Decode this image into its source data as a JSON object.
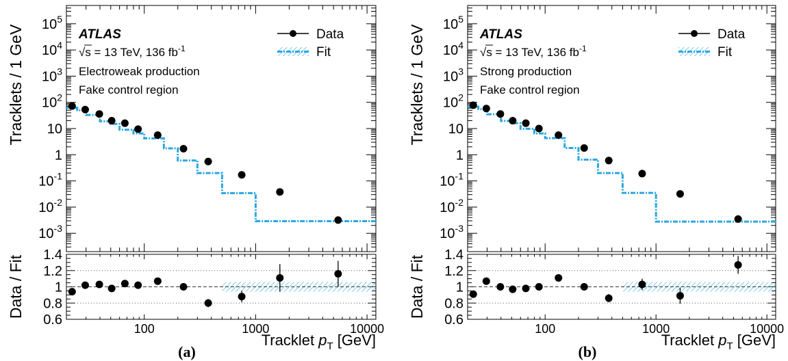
{
  "colors": {
    "data": "#000000",
    "fit": "#29a7e1",
    "fit_band": "#29a7e1",
    "reference": "#333333",
    "grid": "#555555"
  },
  "chart_data": [
    {
      "panel_label": "(a)",
      "type": "line",
      "x_scale": "log",
      "y_scale": "log",
      "ratio_y_scale": "linear",
      "xlabel_prefix": "Tracklet ",
      "xlabel_var": "p",
      "xlabel_sub": "T",
      "xlabel_unit": " [GeV]",
      "ylabel": "Tracklets / 1 GeV",
      "ratio_ylabel": "Data / Fit",
      "xlim": [
        20,
        12000
      ],
      "ylim": [
        0.0002,
        500000
      ],
      "ratio_ylim": [
        0.6,
        1.4
      ],
      "x_ticks": [
        "100",
        "1000",
        "10000"
      ],
      "y_ticks": [
        {
          "mant": "10",
          "exp": "-3"
        },
        {
          "mant": "10",
          "exp": "-2"
        },
        {
          "mant": "10",
          "exp": "-1"
        },
        {
          "mant": "1",
          "exp": ""
        },
        {
          "mant": "10",
          "exp": ""
        },
        {
          "mant": "10",
          "exp": "2"
        },
        {
          "mant": "10",
          "exp": "3"
        },
        {
          "mant": "10",
          "exp": "4"
        },
        {
          "mant": "10",
          "exp": "5"
        }
      ],
      "ratio_ticks": [
        "0.6",
        "0.8",
        "1",
        "1.2",
        "1.4"
      ],
      "legend": [
        {
          "label": "Data"
        },
        {
          "label": "Fit"
        }
      ],
      "experiment": "ATLAS",
      "lumi_prefix": "√s = 13 TeV, 136 fb",
      "lumi_exp": "-1",
      "annotation_lines": [
        "Electroweak production",
        "Fake control region"
      ],
      "fit": {
        "edges": [
          20,
          25,
          30,
          40,
          50,
          60,
          80,
          100,
          150,
          200,
          300,
          500,
          1000,
          2500,
          12000
        ],
        "values": [
          62,
          50,
          33,
          19,
          15,
          9,
          6.5,
          4.2,
          1.75,
          0.6,
          0.2,
          0.034,
          0.0029,
          0.0029
        ]
      },
      "data": {
        "x": [
          22.5,
          27.5,
          35,
          45,
          55,
          70,
          90,
          125,
          175,
          250,
          400,
          750,
          1750,
          5500
        ],
        "y": [
          72,
          53,
          36,
          20,
          16,
          9.5,
          5.6,
          1.7,
          0.55,
          0.17,
          0.038,
          0.0032,
          null,
          null
        ]
      },
      "data_points": [
        [
          22.5,
          72
        ],
        [
          29.5,
          53
        ],
        [
          39.5,
          36
        ],
        [
          51,
          20
        ],
        [
          67,
          16
        ],
        [
          88,
          9.5
        ],
        [
          132,
          5.6
        ],
        [
          225,
          1.7
        ],
        [
          375,
          0.55
        ],
        [
          750,
          0.17
        ],
        [
          1650,
          0.038
        ],
        [
          5500,
          0.0032
        ]
      ],
      "ratio_points": [
        [
          22.5,
          0.94,
          0.03
        ],
        [
          29.5,
          1.02,
          0.03
        ],
        [
          39.5,
          1.03,
          0.035
        ],
        [
          51,
          0.98,
          0.035
        ],
        [
          67,
          1.04,
          0.04
        ],
        [
          88,
          1.02,
          0.04
        ],
        [
          132,
          1.07,
          0.04
        ],
        [
          225,
          1.0,
          0.045
        ],
        [
          375,
          0.8,
          0.05
        ],
        [
          750,
          0.88,
          0.07
        ],
        [
          1650,
          1.11,
          0.17
        ],
        [
          5500,
          1.16,
          0.16
        ]
      ],
      "fit_band_from": 500,
      "fit_band_halfwidth": 0.06
    },
    {
      "panel_label": "(b)",
      "type": "line",
      "x_scale": "log",
      "y_scale": "log",
      "ratio_y_scale": "linear",
      "xlabel_prefix": "Tracklet ",
      "xlabel_var": "p",
      "xlabel_sub": "T",
      "xlabel_unit": " [GeV]",
      "ylabel": "Tracklets / 1 GeV",
      "ratio_ylabel": "Data / Fit",
      "xlim": [
        20,
        12000
      ],
      "ylim": [
        0.0002,
        500000
      ],
      "ratio_ylim": [
        0.6,
        1.4
      ],
      "x_ticks": [
        "100",
        "1000",
        "10000"
      ],
      "y_ticks": [
        {
          "mant": "10",
          "exp": "-3"
        },
        {
          "mant": "10",
          "exp": "-2"
        },
        {
          "mant": "10",
          "exp": "-1"
        },
        {
          "mant": "1",
          "exp": ""
        },
        {
          "mant": "10",
          "exp": ""
        },
        {
          "mant": "10",
          "exp": "2"
        },
        {
          "mant": "10",
          "exp": "3"
        },
        {
          "mant": "10",
          "exp": "4"
        },
        {
          "mant": "10",
          "exp": "5"
        }
      ],
      "ratio_ticks": [
        "0.6",
        "0.8",
        "1",
        "1.2",
        "1.4"
      ],
      "legend": [
        {
          "label": "Data"
        },
        {
          "label": "Fit"
        }
      ],
      "experiment": "ATLAS",
      "lumi_prefix": "√s = 13 TeV, 136 fb",
      "lumi_exp": "-1",
      "annotation_lines": [
        "Strong production",
        "Fake control region"
      ],
      "fit": {
        "edges": [
          20,
          25,
          30,
          40,
          50,
          60,
          80,
          100,
          150,
          200,
          300,
          500,
          1000,
          2500,
          12000
        ],
        "values": [
          68,
          55,
          35,
          19.5,
          16,
          9.8,
          6.5,
          4.3,
          1.8,
          0.65,
          0.2,
          0.035,
          0.0028,
          0.0028
        ]
      },
      "data_points": [
        [
          22.5,
          78
        ],
        [
          29.5,
          58
        ],
        [
          39.5,
          36
        ],
        [
          51,
          20
        ],
        [
          67,
          16
        ],
        [
          88,
          10
        ],
        [
          132,
          5.6
        ],
        [
          225,
          1.8
        ],
        [
          375,
          0.6
        ],
        [
          750,
          0.19
        ],
        [
          1650,
          0.032
        ],
        [
          5500,
          0.0035
        ]
      ],
      "ratio_points": [
        [
          22.5,
          0.91,
          0.03
        ],
        [
          29.5,
          1.07,
          0.03
        ],
        [
          39.5,
          1.0,
          0.035
        ],
        [
          51,
          0.97,
          0.035
        ],
        [
          67,
          0.98,
          0.04
        ],
        [
          88,
          1.0,
          0.04
        ],
        [
          132,
          1.11,
          0.04
        ],
        [
          225,
          1.0,
          0.045
        ],
        [
          375,
          0.86,
          0.05
        ],
        [
          750,
          1.03,
          0.07
        ],
        [
          1650,
          0.89,
          0.1
        ],
        [
          5500,
          1.27,
          0.11
        ]
      ],
      "fit_band_from": 500,
      "fit_band_halfwidth": 0.06
    }
  ]
}
